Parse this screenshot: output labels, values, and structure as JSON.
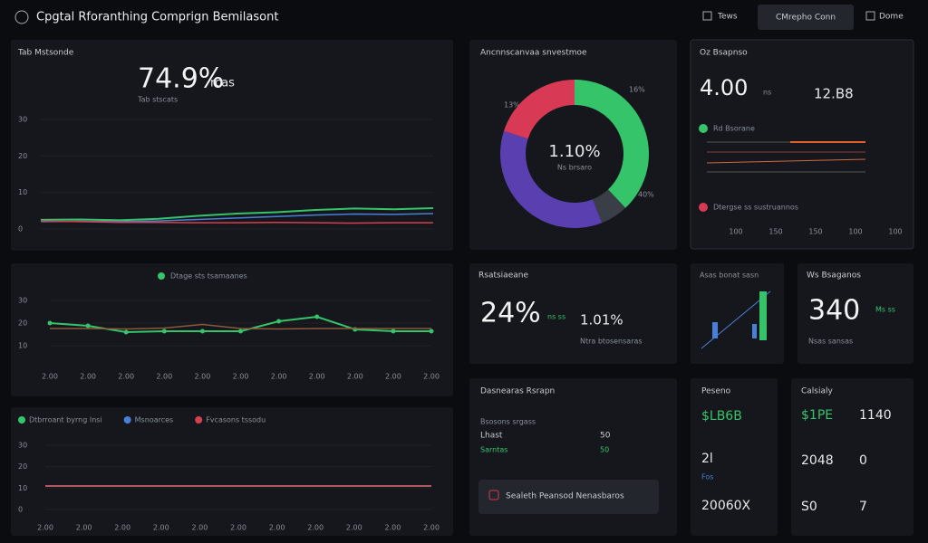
{
  "header": {
    "title": "Cpgtal Rforanthing Comprign Bemilasont",
    "buttons": [
      "Tews",
      "CMrepho Conn",
      "Dome"
    ]
  },
  "trend": {
    "label": "Tab Mstsonde",
    "kpi": "74.9%",
    "kpi_unit": "rcas",
    "kpi_sub": "Tab stscats",
    "ylim": [
      0,
      30
    ],
    "yticks": [
      0,
      10,
      20,
      30
    ],
    "series": [
      {
        "color": "#35c46a",
        "values": [
          2.5,
          2.6,
          2.4,
          2.8,
          3.6,
          4.2,
          4.6,
          5.2,
          5.6,
          5.4,
          5.7
        ]
      },
      {
        "color": "#4a7fd6",
        "values": [
          2.0,
          2.1,
          2.0,
          2.2,
          2.6,
          3.0,
          3.4,
          3.8,
          4.1,
          4.0,
          4.2
        ]
      },
      {
        "color": "#d8404f",
        "values": [
          2.2,
          2.0,
          1.8,
          1.8,
          1.7,
          1.7,
          1.8,
          1.7,
          1.6,
          1.7,
          1.7
        ]
      }
    ]
  },
  "activity": {
    "legend": "Dtage sts tsamaanes",
    "ylim": [
      10,
      30
    ],
    "yticks": [
      10,
      20,
      30
    ],
    "categories": [
      "2.00",
      "2.00",
      "2.00",
      "2.00",
      "2.00",
      "2.00",
      "2.00",
      "2.00",
      "2.00",
      "2.00",
      "2.00"
    ],
    "series": [
      {
        "color": "#35c46a",
        "values": [
          20,
          18.8,
          16,
          16.4,
          16.4,
          16.4,
          20.8,
          22.8,
          17.2,
          16.4,
          16.4
        ]
      },
      {
        "color": "#8a5a3a",
        "values": [
          17.6,
          17.6,
          17.4,
          17.8,
          19.4,
          17.6,
          17.4,
          17.6,
          17.6,
          17.6,
          17.6
        ]
      }
    ]
  },
  "forecast": {
    "ylim": [
      0,
      30
    ],
    "yticks": [
      0,
      10,
      20,
      30
    ],
    "categories": [
      "2.00",
      "2.00",
      "2.00",
      "2.00",
      "2.00",
      "2.00",
      "2.00",
      "2.00",
      "2.00",
      "2.00",
      "2.00"
    ],
    "series": [
      {
        "name": "Dtbrroant byrng Insi",
        "color": "#35c46a",
        "values": [
          11,
          11,
          11,
          11,
          11,
          11,
          11,
          11,
          11,
          11,
          11
        ]
      },
      {
        "name": "Msnoarces",
        "color": "#4a7fd6",
        "values": [
          11,
          11,
          11,
          11,
          11,
          11,
          11,
          11,
          11,
          11,
          11
        ]
      },
      {
        "name": "Fvcasons tssodu",
        "color": "#d8404f",
        "values": [
          11,
          11,
          11,
          11,
          11,
          11,
          11,
          11,
          11,
          11,
          11
        ]
      }
    ]
  },
  "donut": {
    "title": "Ancnnscanvaa snvestmoe",
    "center_value": "1.10%",
    "center_label": "Ns brsaro",
    "segments": [
      {
        "value": 38,
        "color": "#35c46a"
      },
      {
        "value": 6,
        "color": "#3a3f47"
      },
      {
        "value": 36,
        "color": "#5a3fb0"
      },
      {
        "value": 20,
        "color": "#d83a55"
      }
    ],
    "callouts": [
      "16%",
      "13%",
      "40%"
    ]
  },
  "summary": {
    "title": "Oz Bsapnso",
    "value": "4.00",
    "unit": "ns",
    "value2": "12.B8",
    "legend1": "Rd Bsorane",
    "legend2": "Dtergse ss sustruannos",
    "xlabels": [
      "100",
      "150",
      "150",
      "100",
      "100"
    ]
  },
  "card1": {
    "title": "Rsatsiaeane",
    "value": "24%",
    "unit": "ns ss",
    "value2": "1.01%",
    "note": "Ntra btosensaras"
  },
  "card2": {
    "title": "Asas bonat sasn"
  },
  "card3": {
    "title": "Ws Bsaganos",
    "value": "340",
    "unit": "Ms ss",
    "note": "Nsas sansas"
  },
  "details": {
    "title": "Dasnearas Rsrapn",
    "rows": [
      [
        "Lhast",
        "50"
      ],
      [
        "Sarntas",
        "50"
      ]
    ],
    "note": "Bsosons srgass",
    "button": "Sealeth Peansod Nenasbaros"
  },
  "list1": {
    "title": "Peseno",
    "items": [
      "$LB6B",
      "2l",
      "Fos",
      "20060X"
    ]
  },
  "list2": {
    "title": "Calsialy",
    "items": [
      "$1PE",
      "1140",
      "2048",
      "0",
      "S0",
      "7"
    ]
  }
}
